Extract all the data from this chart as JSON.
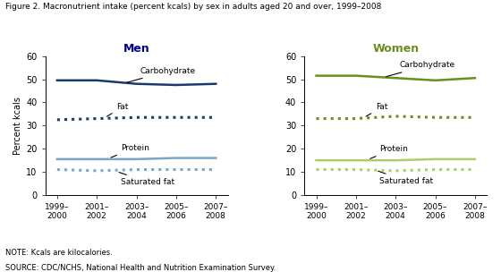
{
  "title": "Figure 2. Macronutrient intake (percent kcals) by sex in adults aged 20 and over, 1999–2008",
  "note": "NOTE: Kcals are kilocalories.",
  "source": "SOURCE: CDC/NCHS, National Health and Nutrition Examination Survey.",
  "x_labels": [
    "1999–\n2000",
    "2001–\n2002",
    "2003–\n2004",
    "2005–\n2006",
    "2007–\n2008"
  ],
  "x_vals": [
    0,
    1,
    2,
    3,
    4
  ],
  "men": {
    "title": "Men",
    "title_color": "#00008B",
    "carbohydrate": [
      49.5,
      49.5,
      48.0,
      47.5,
      48.0
    ],
    "fat": [
      32.5,
      33.0,
      33.5,
      33.5,
      33.5
    ],
    "protein": [
      15.5,
      15.5,
      15.5,
      16.0,
      16.0
    ],
    "saturated_fat": [
      11.0,
      10.5,
      11.0,
      11.0,
      11.0
    ],
    "carb_color": "#1B3A6B",
    "fat_color": "#1B3A6B",
    "protein_color": "#7BA7C7",
    "satfat_color": "#7BA7C7"
  },
  "women": {
    "title": "Women",
    "title_color": "#6B8E23",
    "carbohydrate": [
      51.5,
      51.5,
      50.5,
      49.5,
      50.5
    ],
    "fat": [
      33.0,
      33.0,
      34.0,
      33.5,
      33.5
    ],
    "protein": [
      15.0,
      15.0,
      15.0,
      15.5,
      15.5
    ],
    "saturated_fat": [
      11.0,
      11.0,
      10.5,
      11.0,
      11.0
    ],
    "carb_color": "#6B8E23",
    "fat_color": "#6B8E23",
    "protein_color": "#ADCD73",
    "satfat_color": "#ADCD73"
  },
  "ylabel": "Percent kcals",
  "ylim": [
    0,
    60
  ],
  "yticks": [
    0,
    10,
    20,
    30,
    40,
    50,
    60
  ]
}
